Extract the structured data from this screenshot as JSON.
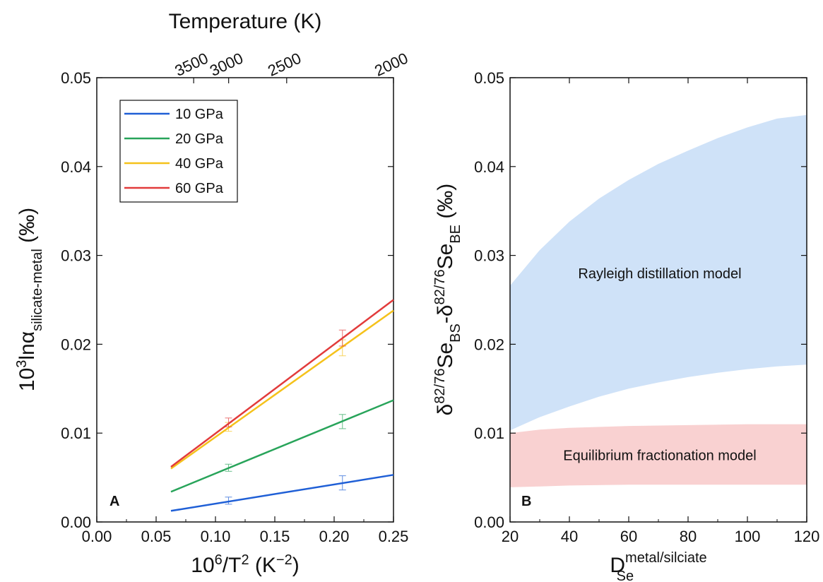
{
  "chart_data": [
    {
      "panel": "A",
      "type": "line",
      "xlabel_base": "10",
      "xlabel_exp1": "6",
      "xlabel_mid": "/T",
      "xlabel_exp2": "2",
      "xlabel_unit_a": " (K",
      "xlabel_unit_exp": "−2",
      "xlabel_unit_b": ")",
      "ylabel_base": "10",
      "ylabel_exp": "3",
      "ylabel_ln": "lnα",
      "ylabel_sub": "silicate-metal",
      "ylabel_unit": " (‰)",
      "top_axis_label": "Temperature (K)",
      "xlim": [
        0.0,
        0.25
      ],
      "ylim": [
        0.0,
        0.05
      ],
      "xticks": [
        0.0,
        0.05,
        0.1,
        0.15,
        0.2,
        0.25
      ],
      "xtick_labels": [
        "0.00",
        "0.05",
        "0.10",
        "0.15",
        "0.20",
        "0.25"
      ],
      "yticks": [
        0.0,
        0.01,
        0.02,
        0.03,
        0.04,
        0.05
      ],
      "ytick_labels": [
        "0.00",
        "0.01",
        "0.02",
        "0.03",
        "0.04",
        "0.05"
      ],
      "top_ticks": [
        3500,
        3000,
        2500,
        2000
      ],
      "top_tick_labels": [
        "3500",
        "3000",
        "2500",
        "2000"
      ],
      "legend_position": "top-left",
      "series": [
        {
          "name": "10 GPa",
          "color": "#1f5fd6",
          "x": [
            0.0625,
            0.25
          ],
          "y": [
            0.00125,
            0.0053
          ],
          "error_points": [
            {
              "x": 0.111,
              "y": 0.0024,
              "err": 0.0004
            },
            {
              "x": 0.207,
              "y": 0.0044,
              "err": 0.0008
            }
          ]
        },
        {
          "name": "20 GPa",
          "color": "#28a45a",
          "x": [
            0.0625,
            0.25
          ],
          "y": [
            0.0034,
            0.0137
          ],
          "error_points": [
            {
              "x": 0.111,
              "y": 0.0061,
              "err": 0.0004
            },
            {
              "x": 0.207,
              "y": 0.0113,
              "err": 0.0008
            }
          ]
        },
        {
          "name": "40 GPa",
          "color": "#f5c21b",
          "x": [
            0.0625,
            0.25
          ],
          "y": [
            0.006,
            0.0238
          ],
          "error_points": [
            {
              "x": 0.111,
              "y": 0.0107,
              "err": 0.0005
            },
            {
              "x": 0.207,
              "y": 0.0196,
              "err": 0.0009
            }
          ]
        },
        {
          "name": "60 GPa",
          "color": "#e23b3b",
          "x": [
            0.0625,
            0.25
          ],
          "y": [
            0.0062,
            0.025
          ],
          "error_points": [
            {
              "x": 0.111,
              "y": 0.0112,
              "err": 0.0005
            },
            {
              "x": 0.207,
              "y": 0.0207,
              "err": 0.0009
            }
          ]
        }
      ]
    },
    {
      "panel": "B",
      "type": "area",
      "ylabel_delta1": "δ",
      "ylabel_sup1": "82/76",
      "ylabel_se1": "Se",
      "ylabel_sub1": "BS",
      "ylabel_dash": "-δ",
      "ylabel_sup2": "82/76",
      "ylabel_se2": "Se",
      "ylabel_sub2": "BE",
      "ylabel_unit": " (‰)",
      "xlabel_base": "D",
      "xlabel_sup": "metal/silciate",
      "xlabel_sub": "Se",
      "xlim": [
        20,
        120
      ],
      "ylim": [
        0.0,
        0.05
      ],
      "xticks": [
        20,
        40,
        60,
        80,
        100,
        120
      ],
      "xtick_labels": [
        "20",
        "40",
        "60",
        "80",
        "100",
        "120"
      ],
      "yticks": [
        0.0,
        0.01,
        0.02,
        0.03,
        0.04,
        0.05
      ],
      "ytick_labels": [
        "0.00",
        "0.01",
        "0.02",
        "0.03",
        "0.04",
        "0.05"
      ],
      "regions": [
        {
          "name": "Rayleigh distillation model",
          "color": "#cfe2f8",
          "x": [
            20,
            30,
            40,
            50,
            60,
            70,
            80,
            90,
            100,
            110,
            120
          ],
          "upper": [
            0.0266,
            0.0306,
            0.0338,
            0.0364,
            0.0385,
            0.0403,
            0.0418,
            0.0432,
            0.0444,
            0.0454,
            0.0458
          ],
          "lower": [
            0.0103,
            0.0118,
            0.013,
            0.0141,
            0.015,
            0.0157,
            0.0163,
            0.0168,
            0.0172,
            0.0175,
            0.0177
          ]
        },
        {
          "name": "Equilibrium fractionation model",
          "color": "#f9d1d1",
          "x": [
            20,
            30,
            40,
            60,
            80,
            100,
            120
          ],
          "upper": [
            0.01,
            0.0104,
            0.0106,
            0.0108,
            0.0109,
            0.011,
            0.011
          ],
          "lower": [
            0.0039,
            0.004,
            0.0041,
            0.0042,
            0.0042,
            0.0042,
            0.0042
          ]
        }
      ]
    }
  ]
}
